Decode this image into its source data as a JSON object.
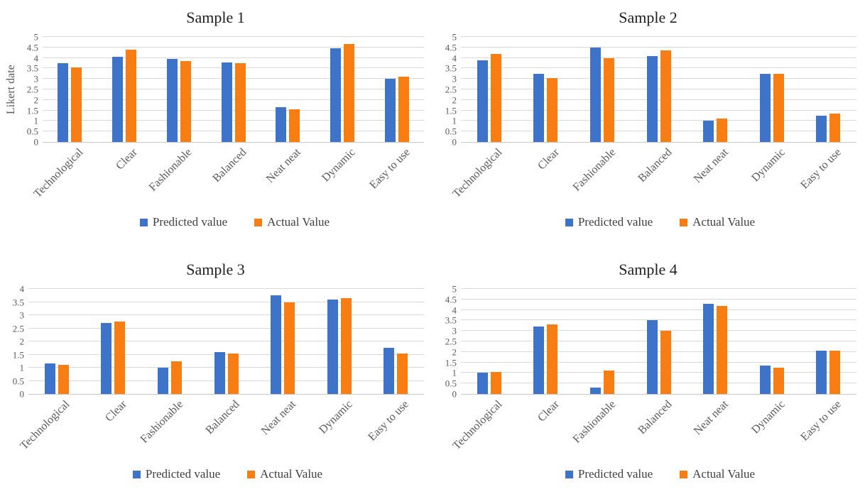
{
  "colors": {
    "predicted": "#3D74C9",
    "actual": "#F87D12",
    "gridline": "#D9D9D9",
    "axis_line": "#C8C8C8",
    "axis_text": "#595959",
    "title_text": "#1F1F1F",
    "legend_text": "#3F3F3F",
    "background": "#FFFFFF"
  },
  "chart_data": [
    {
      "type": "bar",
      "title": "Sample 1",
      "ylabel": "Likert date",
      "xlabel": "",
      "ylim": [
        0,
        5
      ],
      "grid": true,
      "legend_position": "bottom",
      "ytick_labels": [
        "0",
        "0.5",
        "1",
        "1.5",
        "2",
        "2.5",
        "3",
        "3.5",
        "4",
        "4.5",
        "5"
      ],
      "categories": [
        "Technological",
        "Clear",
        "Fashionable",
        "Balanced",
        "Neat neat",
        "Dynamic",
        "Easy to use"
      ],
      "series": [
        {
          "name": "Predicted value",
          "color": "#3D74C9",
          "values": [
            3.75,
            4.05,
            3.95,
            3.8,
            1.65,
            4.45,
            3.0
          ]
        },
        {
          "name": "Actual Value",
          "color": "#F87D12",
          "values": [
            3.55,
            4.4,
            3.85,
            3.75,
            1.55,
            4.65,
            3.1
          ]
        }
      ]
    },
    {
      "type": "bar",
      "title": "Sample 2",
      "ylabel": "",
      "xlabel": "",
      "ylim": [
        0,
        5
      ],
      "grid": true,
      "legend_position": "bottom",
      "ytick_labels": [
        "0",
        "0.5",
        "1",
        "1.5",
        "2",
        "2.5",
        "3",
        "3.5",
        "4",
        "4.5",
        "5"
      ],
      "categories": [
        "Technological",
        "Clear",
        "Fashionable",
        "Balanced",
        "Neat neat",
        "Dynamic",
        "Easy to use"
      ],
      "series": [
        {
          "name": "Predicted value",
          "color": "#3D74C9",
          "values": [
            3.9,
            3.25,
            4.5,
            4.1,
            1.0,
            3.25,
            1.25
          ]
        },
        {
          "name": "Actual Value",
          "color": "#F87D12",
          "values": [
            4.2,
            3.05,
            4.0,
            4.35,
            1.1,
            3.25,
            1.35
          ]
        }
      ]
    },
    {
      "type": "bar",
      "title": "Sample 3",
      "ylabel": "",
      "xlabel": "",
      "ylim": [
        0,
        4
      ],
      "grid": true,
      "legend_position": "bottom",
      "ytick_labels": [
        "0",
        "0.5",
        "1",
        "1.5",
        "2",
        "2.5",
        "3",
        "3.5",
        "4"
      ],
      "categories": [
        "Technological",
        "Clear",
        "Fashionable",
        "Balanced",
        "Neat neat",
        "Dynamic",
        "Easy to use"
      ],
      "series": [
        {
          "name": "Predicted value",
          "color": "#3D74C9",
          "values": [
            1.15,
            2.7,
            1.0,
            1.6,
            3.75,
            3.6,
            1.75
          ]
        },
        {
          "name": "Actual Value",
          "color": "#F87D12",
          "values": [
            1.1,
            2.75,
            1.25,
            1.55,
            3.5,
            3.65,
            1.55
          ]
        }
      ]
    },
    {
      "type": "bar",
      "title": "Sample 4",
      "ylabel": "",
      "xlabel": "",
      "ylim": [
        0,
        5
      ],
      "grid": true,
      "legend_position": "bottom",
      "ytick_labels": [
        "0",
        "0.5",
        "1",
        "1.5",
        "2",
        "2.5",
        "3",
        "3.5",
        "4",
        "4.5",
        "5"
      ],
      "categories": [
        "Technological",
        "Clear",
        "Fashionable",
        "Balanced",
        "Neat neat",
        "Dynamic",
        "Easy to use"
      ],
      "series": [
        {
          "name": "Predicted value",
          "color": "#3D74C9",
          "values": [
            1.0,
            3.2,
            0.3,
            3.5,
            4.3,
            1.35,
            2.05
          ]
        },
        {
          "name": "Actual Value",
          "color": "#F87D12",
          "values": [
            1.05,
            3.3,
            1.1,
            3.0,
            4.2,
            1.25,
            2.05
          ]
        }
      ]
    }
  ]
}
